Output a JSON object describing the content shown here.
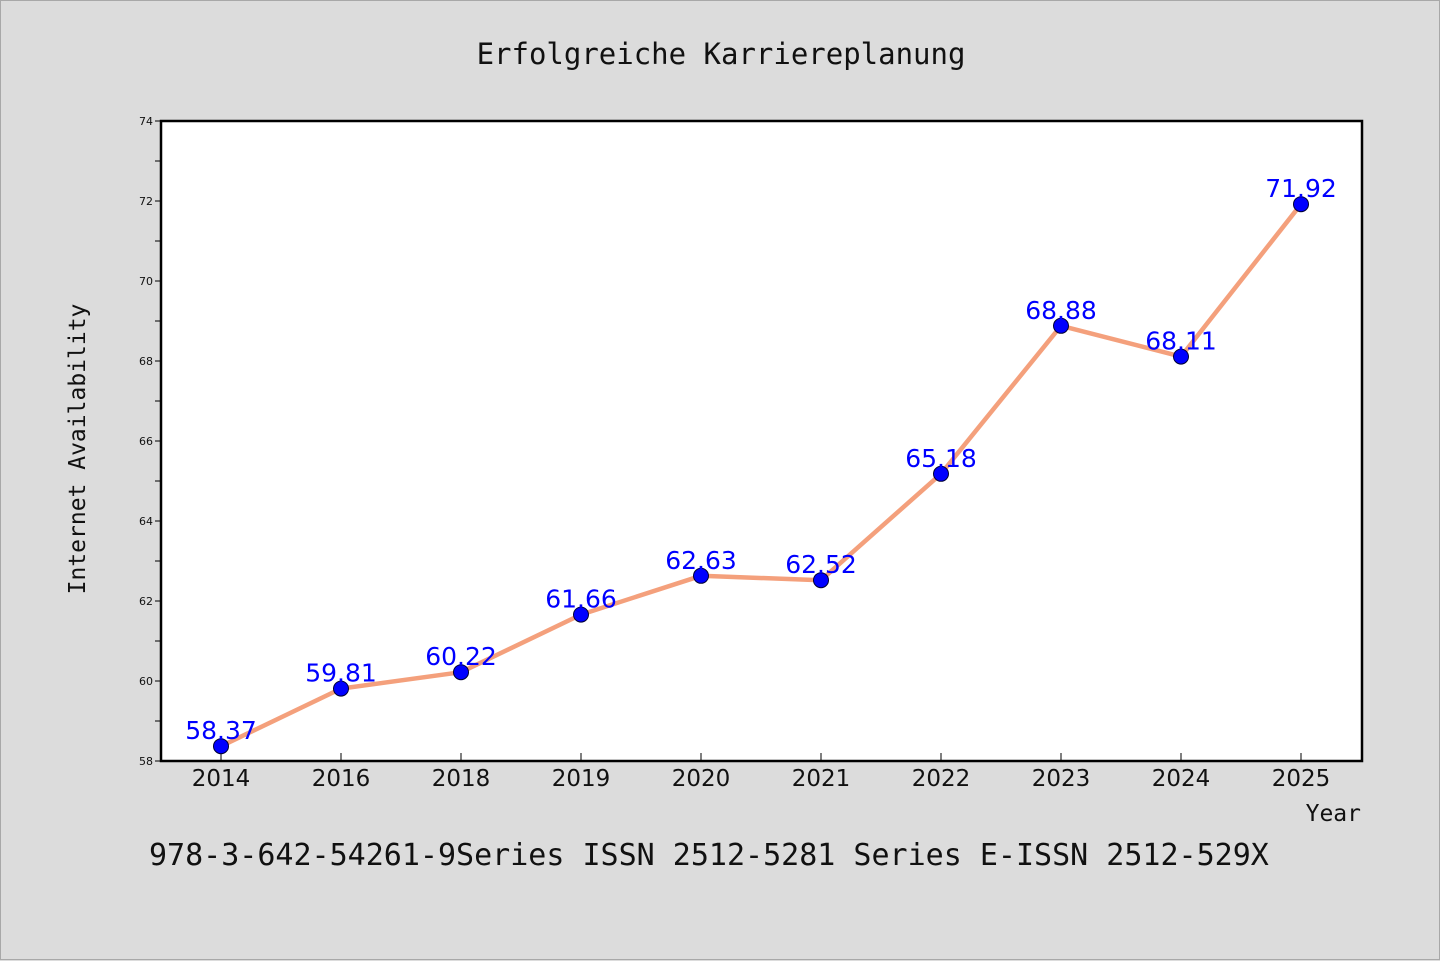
{
  "chart_data": {
    "type": "line",
    "title": "Erfolgreiche Karriereplanung",
    "xlabel": "Year",
    "ylabel": "Internet Availability",
    "categories": [
      "2014",
      "2016",
      "2018",
      "2019",
      "2020",
      "2021",
      "2022",
      "2023",
      "2024",
      "2025"
    ],
    "series": [
      {
        "values": [
          58.37,
          59.81,
          60.22,
          61.66,
          62.63,
          62.52,
          65.18,
          68.88,
          68.11,
          71.92
        ],
        "line_color": "#f4a07c",
        "marker_color": "#0000ff"
      }
    ],
    "data_labels": [
      "58.37",
      "59.81",
      "60.22",
      "61.66",
      "62.63",
      "62.52",
      "65.18",
      "68.88",
      "68.11",
      "71.92"
    ],
    "ylim": [
      58,
      74
    ],
    "yticks": [
      "58",
      "60",
      "62",
      "64",
      "66",
      "68",
      "70",
      "72",
      "74"
    ],
    "grid": false,
    "legend": "none"
  },
  "footer": {
    "text": "978-3-642-54261-9Series ISSN 2512-5281 Series E-ISSN 2512-529X"
  },
  "colors": {
    "background": "#dcdcdc",
    "plot_area": "#ffffff",
    "line": "#f4a07c",
    "marker": "#0000ff",
    "data_label": "#0000ff"
  }
}
